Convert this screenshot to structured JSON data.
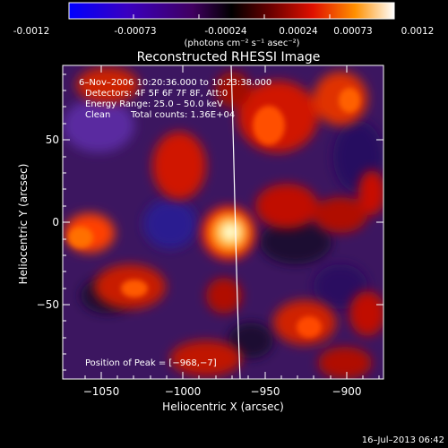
{
  "colorbar": {
    "ticks": [
      "-0.0012",
      "-0.00073",
      "-0.00024",
      "0.00024",
      "0.00073",
      "0.0012"
    ],
    "unit_label": "(photons cm⁻² s⁻¹ asec⁻²)",
    "colors": [
      "#0000ff",
      "#5a00a0",
      "#000000",
      "#7a0000",
      "#ff2000",
      "#ff9a00",
      "#ffffff"
    ]
  },
  "title": "Reconstructed RHESSI Image",
  "info": {
    "line1": "6–Nov–2006 10:20:36.000 to 10:23:38.000",
    "line2": "Detectors: 4F 5F 6F 7F 8F, Att:0",
    "line3": "Energy Range: 25.0 – 50.0 keV",
    "line4_left": "Clean",
    "line4_right": "Total counts: 1.36E+04"
  },
  "peak_label": "Position of Peak = [−968,−7]",
  "x_axis": {
    "label": "Heliocentric X (arcsec)",
    "ticks": [
      "−1050",
      "−1000",
      "−950",
      "−900"
    ]
  },
  "y_axis": {
    "label": "Heliocentric Y (arcsec)",
    "ticks": [
      "50",
      "0",
      "−50"
    ]
  },
  "timestamp": "16–Jul–2013 06:42"
}
